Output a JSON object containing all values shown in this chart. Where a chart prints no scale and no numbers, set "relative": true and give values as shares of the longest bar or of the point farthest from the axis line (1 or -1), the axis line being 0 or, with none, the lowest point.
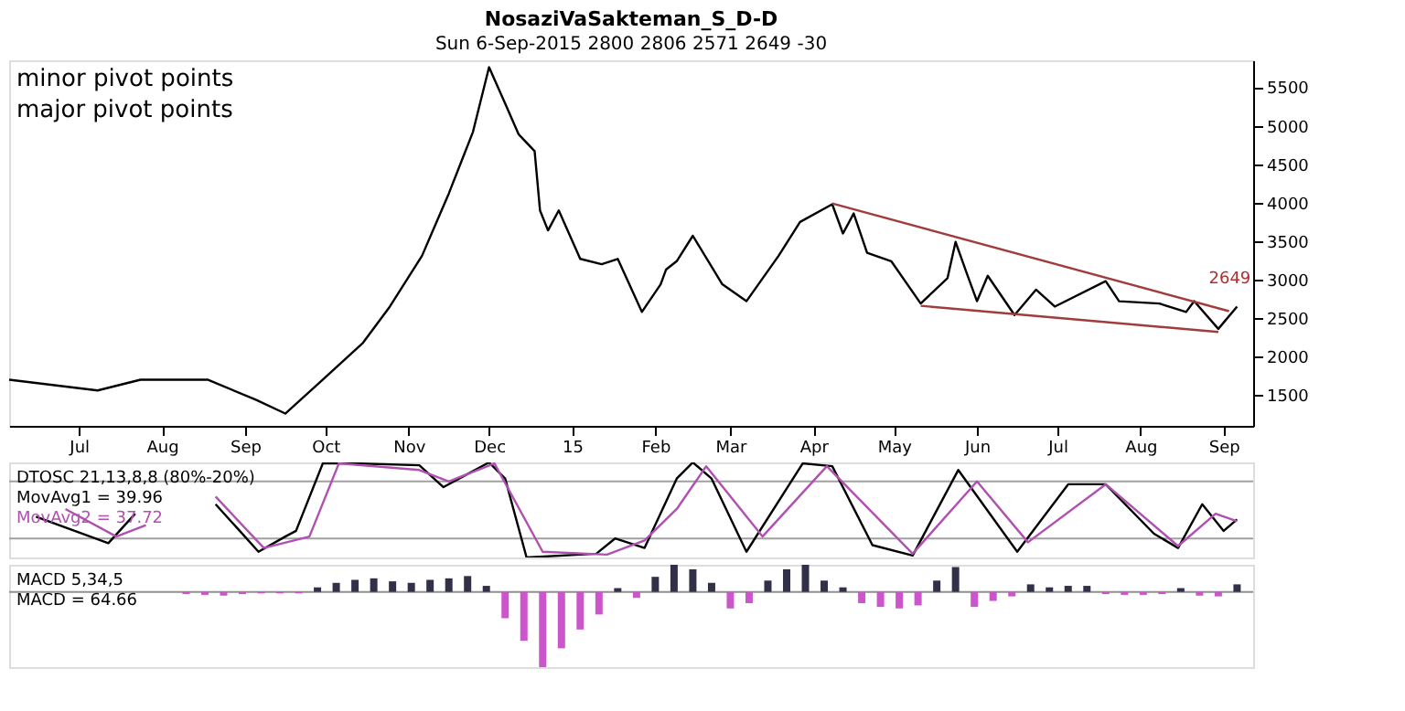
{
  "chart_data": [
    {
      "type": "line",
      "title": "NosaziVaSakteman_S_D-D",
      "subtitle": "Sun 6-Sep-2015   2800   2806   2571   2649   -30",
      "annotations": [
        "minor pivot points",
        "major pivot points",
        {
          "text": "2649",
          "x": "2015-09-06",
          "y": 2649
        }
      ],
      "xlim": [
        "2014-06-05",
        "2015-09-12"
      ],
      "xticks": [
        {
          "value": "2014-07-01",
          "label": "Jul"
        },
        {
          "value": "2014-08-01",
          "label": "Aug"
        },
        {
          "value": "2014-09-01",
          "label": "Sep"
        },
        {
          "value": "2014-10-01",
          "label": "Oct"
        },
        {
          "value": "2014-11-01",
          "label": "Nov"
        },
        {
          "value": "2014-12-01",
          "label": "Dec"
        },
        {
          "value": "2015-01-01",
          "label": "15"
        },
        {
          "value": "2015-02-01",
          "label": "Feb"
        },
        {
          "value": "2015-03-01",
          "label": "Mar"
        },
        {
          "value": "2015-04-01",
          "label": "Apr"
        },
        {
          "value": "2015-05-01",
          "label": "May"
        },
        {
          "value": "2015-06-01",
          "label": "Jun"
        },
        {
          "value": "2015-07-01",
          "label": "Jul"
        },
        {
          "value": "2015-08-01",
          "label": "Aug"
        },
        {
          "value": "2015-09-01",
          "label": "Sep"
        }
      ],
      "ylim": [
        1100,
        5850
      ],
      "yticks": [
        1500,
        2000,
        2500,
        3000,
        3500,
        4000,
        4500,
        5000,
        5500
      ],
      "series": [
        {
          "type": "line",
          "color": "#000000",
          "x": [
            "2014-06-05",
            "2014-07-08",
            "2014-07-24",
            "2014-08-18",
            "2014-09-05",
            "2014-09-16",
            "2014-09-30",
            "2014-10-15",
            "2014-10-25",
            "2014-11-06",
            "2014-11-16",
            "2014-11-25",
            "2014-12-01",
            "2014-12-07",
            "2014-12-12",
            "2014-12-18",
            "2014-12-20",
            "2014-12-23",
            "2014-12-27",
            "2015-01-04",
            "2015-01-12",
            "2015-01-18",
            "2015-01-27",
            "2015-02-03",
            "2015-02-05",
            "2015-02-09",
            "2015-02-15",
            "2015-02-26",
            "2015-03-07",
            "2015-03-19",
            "2015-03-27",
            "2015-04-08",
            "2015-04-12",
            "2015-04-16",
            "2015-04-21",
            "2015-04-30",
            "2015-05-11",
            "2015-05-21",
            "2015-05-24",
            "2015-05-28",
            "2015-06-01",
            "2015-06-05",
            "2015-06-15",
            "2015-06-23",
            "2015-06-30",
            "2015-07-19",
            "2015-07-24",
            "2015-08-08",
            "2015-08-18",
            "2015-08-21",
            "2015-08-30",
            "2015-09-06"
          ],
          "values": [
            1700,
            1560,
            1700,
            1700,
            1440,
            1260,
            1700,
            2180,
            2650,
            3310,
            4120,
            4920,
            5760,
            5290,
            4890,
            4670,
            3900,
            3640,
            3900,
            3270,
            3200,
            3270,
            2580,
            2940,
            3130,
            3240,
            3570,
            2940,
            2720,
            3310,
            3750,
            3980,
            3600,
            3860,
            3350,
            3240,
            2690,
            3020,
            3490,
            3100,
            2720,
            3050,
            2540,
            2870,
            2650,
            2980,
            2720,
            2690,
            2580,
            2720,
            2360,
            2650
          ]
        },
        {
          "type": "line",
          "color": "#a03c3c",
          "x": [
            "2015-04-08",
            "2015-09-03"
          ],
          "values": [
            3990,
            2590
          ]
        },
        {
          "type": "line",
          "color": "#a03c3c",
          "x": [
            "2015-05-11",
            "2015-08-30"
          ],
          "values": [
            2660,
            2320
          ]
        }
      ]
    },
    {
      "type": "line",
      "title": "DTOSC 21,13,8,8 (80%-20%)",
      "relative": true,
      "xlim": [
        "2014-06-05",
        "2015-09-12"
      ],
      "ref_lines": [
        {
          "axis": "y",
          "value": 0.8,
          "color": "#a0a0a0"
        },
        {
          "axis": "y",
          "value": 0.2,
          "color": "#a0a0a0"
        }
      ],
      "series": [
        {
          "name": "MovAvg1 = 39.96",
          "color": "#000000",
          "x": [
            "2014-06-15",
            "2014-07-12",
            "2014-07-22",
            "2014-08-05",
            "2014-08-21",
            "2014-08-30",
            "2014-09-06",
            "2014-09-16",
            "2014-09-20",
            "2014-09-30",
            "2014-10-12",
            "2014-11-05",
            "2014-11-14",
            "2014-12-01",
            "2014-12-07",
            "2014-12-15",
            "2015-01-10",
            "2015-01-17",
            "2015-01-28",
            "2015-02-09",
            "2015-02-15",
            "2015-02-22",
            "2015-03-07",
            "2015-03-28",
            "2015-04-08",
            "2015-04-23",
            "2015-05-08",
            "2015-05-25",
            "2015-06-16",
            "2015-07-05",
            "2015-07-19",
            "2015-08-06",
            "2015-08-15",
            "2015-08-24",
            "2015-09-01",
            "2015-09-06"
          ],
          "values": [
            0.43,
            0.15,
            0.46,
            null,
            0.56,
            0.28,
            0.06,
            0.22,
            0.28,
            0.99,
            0.99,
            0.97,
            0.74,
            1.0,
            0.83,
            0.0,
            0.04,
            0.2,
            0.1,
            0.83,
            1.0,
            0.83,
            0.06,
            0.99,
            0.96,
            0.13,
            0.02,
            0.92,
            0.06,
            0.77,
            0.77,
            0.25,
            0.1,
            0.56,
            0.28,
            0.4
          ]
        },
        {
          "name": "MovAvg2 = 37.72",
          "color": "#b050b0",
          "x": [
            "2014-06-26",
            "2014-07-15",
            "2014-07-26",
            "2014-08-08",
            "2014-08-21",
            "2014-09-08",
            "2014-09-25",
            "2014-10-06",
            "2014-11-05",
            "2014-11-16",
            "2014-12-03",
            "2014-12-21",
            "2015-01-14",
            "2015-01-28",
            "2015-02-09",
            "2015-02-20",
            "2015-03-13",
            "2015-04-06",
            "2015-05-08",
            "2015-06-01",
            "2015-06-20",
            "2015-07-19",
            "2015-08-15",
            "2015-08-29",
            "2015-09-06"
          ],
          "values": [
            0.51,
            0.22,
            0.34,
            null,
            0.64,
            0.1,
            0.22,
            0.99,
            0.92,
            0.8,
            0.99,
            0.06,
            0.03,
            0.18,
            0.51,
            0.96,
            0.22,
            0.96,
            0.04,
            0.8,
            0.16,
            0.77,
            0.12,
            0.46,
            0.38
          ]
        }
      ]
    },
    {
      "type": "bar",
      "title": "MACD 5,34,5",
      "annotations": [
        "MACD = 64.66"
      ],
      "relative": true,
      "xlim": [
        "2014-06-05",
        "2015-09-12"
      ],
      "x": [
        "2014-08-10",
        "2014-08-17",
        "2014-08-24",
        "2014-08-31",
        "2014-09-07",
        "2014-09-14",
        "2014-09-21",
        "2014-09-28",
        "2014-10-05",
        "2014-10-12",
        "2014-10-19",
        "2014-10-26",
        "2014-11-02",
        "2014-11-09",
        "2014-11-16",
        "2014-11-23",
        "2014-11-30",
        "2014-12-07",
        "2014-12-14",
        "2014-12-21",
        "2014-12-28",
        "2015-01-04",
        "2015-01-11",
        "2015-01-18",
        "2015-01-25",
        "2015-02-01",
        "2015-02-08",
        "2015-02-15",
        "2015-02-22",
        "2015-03-01",
        "2015-03-08",
        "2015-03-15",
        "2015-03-22",
        "2015-03-29",
        "2015-04-05",
        "2015-04-12",
        "2015-04-19",
        "2015-04-26",
        "2015-05-03",
        "2015-05-10",
        "2015-05-17",
        "2015-05-24",
        "2015-05-31",
        "2015-06-07",
        "2015-06-14",
        "2015-06-21",
        "2015-06-28",
        "2015-07-05",
        "2015-07-12",
        "2015-07-19",
        "2015-07-26",
        "2015-08-02",
        "2015-08-09",
        "2015-08-16",
        "2015-08-23",
        "2015-08-30",
        "2015-09-06"
      ],
      "values": [
        -0.03,
        -0.04,
        -0.05,
        -0.03,
        -0.02,
        -0.02,
        -0.02,
        0.06,
        0.12,
        0.16,
        0.18,
        0.14,
        0.12,
        0.16,
        0.18,
        0.21,
        0.08,
        -0.35,
        -0.65,
        -1.0,
        -0.75,
        -0.5,
        -0.3,
        0.05,
        -0.08,
        0.2,
        0.36,
        0.3,
        0.12,
        -0.22,
        -0.15,
        0.15,
        0.3,
        0.36,
        0.15,
        0.06,
        -0.15,
        -0.2,
        -0.22,
        -0.18,
        0.15,
        0.33,
        -0.2,
        -0.12,
        -0.06,
        0.1,
        0.06,
        0.08,
        0.08,
        -0.03,
        -0.04,
        -0.04,
        -0.03,
        0.05,
        -0.05,
        -0.06,
        0.1
      ],
      "colors": [
        "#cc55cc",
        "#cc55cc",
        "#cc55cc",
        "#cc55cc",
        "#cc55cc",
        "#cc55cc",
        "#cc55cc",
        "#303048",
        "#303048",
        "#303048",
        "#303048",
        "#303048",
        "#303048",
        "#303048",
        "#303048",
        "#303048",
        "#303048",
        "#cc55cc",
        "#cc55cc",
        "#cc55cc",
        "#cc55cc",
        "#cc55cc",
        "#cc55cc",
        "#303048",
        "#cc55cc",
        "#303048",
        "#303048",
        "#303048",
        "#303048",
        "#cc55cc",
        "#cc55cc",
        "#303048",
        "#303048",
        "#303048",
        "#303048",
        "#303048",
        "#cc55cc",
        "#cc55cc",
        "#cc55cc",
        "#cc55cc",
        "#303048",
        "#303048",
        "#cc55cc",
        "#cc55cc",
        "#cc55cc",
        "#303048",
        "#303048",
        "#303048",
        "#303048",
        "#cc55cc",
        "#cc55cc",
        "#cc55cc",
        "#cc55cc",
        "#303048",
        "#cc55cc",
        "#cc55cc",
        "#303048"
      ]
    }
  ]
}
